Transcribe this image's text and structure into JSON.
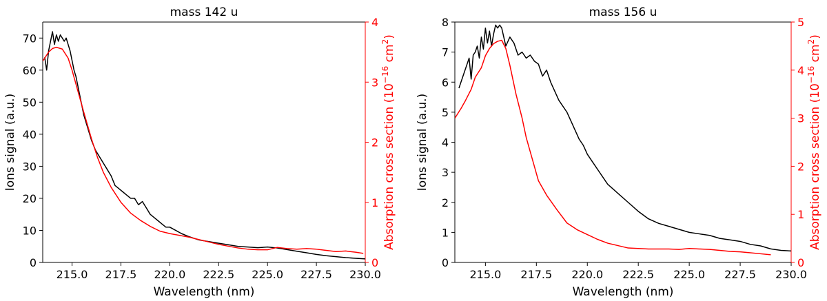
{
  "chart_data": [
    {
      "type": "line",
      "title": "mass 142 u",
      "xlabel": "Wavelength (nm)",
      "ylabel_left": "Ions signal (a.u.)",
      "ylabel_right_main": "Absorption cross section (10",
      "ylabel_right_exp": "−16",
      "ylabel_right_unit": " cm",
      "ylabel_right_sq": "2",
      "ylabel_right_end": ")",
      "xlim": [
        213.5,
        230.0
      ],
      "ylim_left": [
        0,
        75
      ],
      "ylim_right": [
        0,
        4
      ],
      "xticks": [
        215.0,
        217.5,
        220.0,
        222.5,
        225.0,
        227.5,
        230.0
      ],
      "xtick_labels": [
        "215.0",
        "217.5",
        "220.0",
        "222.5",
        "225.0",
        "227.5",
        "230.0"
      ],
      "yticks_left": [
        0,
        10,
        20,
        30,
        40,
        50,
        60,
        70
      ],
      "ytick_labels_left": [
        "0",
        "10",
        "20",
        "30",
        "40",
        "50",
        "60",
        "70"
      ],
      "yticks_right": [
        0,
        1,
        2,
        3,
        4
      ],
      "ytick_labels_right": [
        "0",
        "1",
        "2",
        "3",
        "4"
      ],
      "grid": false,
      "series": [
        {
          "axis": "left",
          "color": "#000000",
          "x": [
            213.6,
            213.7,
            213.8,
            213.9,
            214.0,
            214.1,
            214.2,
            214.3,
            214.4,
            214.5,
            214.6,
            214.7,
            214.8,
            214.9,
            215.0,
            215.1,
            215.2,
            215.3,
            215.4,
            215.5,
            215.6,
            215.7,
            215.8,
            215.9,
            216.0,
            216.2,
            216.4,
            216.6,
            216.8,
            217.0,
            217.2,
            217.4,
            217.6,
            217.8,
            218.0,
            218.2,
            218.4,
            218.6,
            218.8,
            219.0,
            219.2,
            219.4,
            219.6,
            219.8,
            220.0,
            220.3,
            220.6,
            221.0,
            221.5,
            222.0,
            222.5,
            223.0,
            223.5,
            224.0,
            224.5,
            225.0,
            225.5,
            226.0,
            226.5,
            227.0,
            227.5,
            228.0,
            228.5,
            229.0,
            229.5,
            230.0
          ],
          "y": [
            64,
            60,
            66,
            69,
            72,
            68,
            71,
            69,
            71,
            70,
            69,
            70,
            68,
            66,
            63,
            60,
            58,
            55,
            52,
            49,
            46,
            44,
            42,
            40,
            38,
            35,
            33,
            31,
            29,
            27,
            24,
            23,
            22,
            21,
            20,
            20,
            18,
            19,
            17,
            15,
            14,
            13,
            12,
            11,
            11,
            10,
            9,
            8,
            7,
            6.5,
            6,
            5.5,
            5,
            4.8,
            4.6,
            4.8,
            4.5,
            4,
            3.5,
            3,
            2.5,
            2.1,
            1.8,
            1.5,
            1.3,
            1.1
          ]
        },
        {
          "axis": "right",
          "color": "#ff0000",
          "x": [
            213.5,
            213.8,
            214.0,
            214.2,
            214.5,
            214.8,
            215.0,
            215.3,
            215.6,
            216.0,
            216.3,
            216.6,
            217.0,
            217.5,
            218.0,
            218.5,
            219.0,
            219.5,
            220.0,
            220.5,
            221.0,
            221.5,
            222.0,
            222.5,
            223.0,
            223.5,
            224.0,
            224.5,
            225.0,
            225.5,
            226.0,
            226.5,
            227.0,
            227.5,
            228.0,
            228.5,
            229.0,
            229.5,
            229.9
          ],
          "y": [
            3.35,
            3.5,
            3.56,
            3.58,
            3.55,
            3.4,
            3.2,
            2.85,
            2.5,
            2.05,
            1.75,
            1.5,
            1.25,
            1.0,
            0.82,
            0.7,
            0.6,
            0.52,
            0.48,
            0.45,
            0.42,
            0.38,
            0.34,
            0.3,
            0.27,
            0.24,
            0.22,
            0.21,
            0.21,
            0.25,
            0.23,
            0.22,
            0.23,
            0.22,
            0.2,
            0.18,
            0.19,
            0.17,
            0.15
          ]
        }
      ]
    },
    {
      "type": "line",
      "title": "mass 156 u",
      "xlabel": "Wavelength (nm)",
      "ylabel_left": "Ions signal (a.u.)",
      "ylabel_right_main": "Absorption cross section (10",
      "ylabel_right_exp": "−16",
      "ylabel_right_unit": " cm",
      "ylabel_right_sq": "2",
      "ylabel_right_end": ")",
      "xlim": [
        213.5,
        230.0
      ],
      "ylim_left": [
        0,
        8
      ],
      "ylim_right": [
        0,
        5
      ],
      "xticks": [
        215.0,
        217.5,
        220.0,
        222.5,
        225.0,
        227.5,
        230.0
      ],
      "xtick_labels": [
        "215.0",
        "217.5",
        "220.0",
        "222.5",
        "225.0",
        "227.5",
        "230.0"
      ],
      "yticks_left": [
        0,
        1,
        2,
        3,
        4,
        5,
        6,
        7,
        8
      ],
      "ytick_labels_left": [
        "0",
        "1",
        "2",
        "3",
        "4",
        "5",
        "6",
        "7",
        "8"
      ],
      "yticks_right": [
        0,
        1,
        2,
        3,
        4,
        5
      ],
      "ytick_labels_right": [
        "0",
        "1",
        "2",
        "3",
        "4",
        "5"
      ],
      "grid": false,
      "series": [
        {
          "axis": "left",
          "color": "#000000",
          "x": [
            213.7,
            213.9,
            214.1,
            214.2,
            214.3,
            214.4,
            214.5,
            214.6,
            214.7,
            214.8,
            214.9,
            215.0,
            215.1,
            215.2,
            215.3,
            215.4,
            215.5,
            215.6,
            215.7,
            215.8,
            215.9,
            216.0,
            216.2,
            216.4,
            216.6,
            216.8,
            217.0,
            217.2,
            217.4,
            217.6,
            217.8,
            218.0,
            218.2,
            218.4,
            218.6,
            218.8,
            219.0,
            219.2,
            219.4,
            219.6,
            219.8,
            220.0,
            220.3,
            220.6,
            221.0,
            221.5,
            222.0,
            222.5,
            223.0,
            223.5,
            224.0,
            224.5,
            225.0,
            225.5,
            226.0,
            226.5,
            227.0,
            227.5,
            228.0,
            228.5,
            229.0,
            229.5,
            230.0
          ],
          "y": [
            5.8,
            6.2,
            6.6,
            6.8,
            6.1,
            6.9,
            7.0,
            7.2,
            6.8,
            7.5,
            7.1,
            7.8,
            7.3,
            7.7,
            7.2,
            7.6,
            7.9,
            7.8,
            7.9,
            7.8,
            7.5,
            7.2,
            7.5,
            7.3,
            6.9,
            7.0,
            6.8,
            6.9,
            6.7,
            6.6,
            6.2,
            6.4,
            6.0,
            5.7,
            5.4,
            5.2,
            5.0,
            4.7,
            4.4,
            4.1,
            3.9,
            3.6,
            3.3,
            3.0,
            2.6,
            2.3,
            2.0,
            1.7,
            1.45,
            1.3,
            1.2,
            1.1,
            1.0,
            0.95,
            0.9,
            0.8,
            0.75,
            0.7,
            0.6,
            0.55,
            0.45,
            0.4,
            0.38
          ]
        },
        {
          "axis": "right",
          "color": "#ff0000",
          "x": [
            213.5,
            213.8,
            214.0,
            214.3,
            214.5,
            214.8,
            215.0,
            215.2,
            215.4,
            215.6,
            215.8,
            216.0,
            216.2,
            216.5,
            216.8,
            217.0,
            217.3,
            217.6,
            218.0,
            218.5,
            219.0,
            219.5,
            220.0,
            220.5,
            221.0,
            221.5,
            222.0,
            222.5,
            223.0,
            223.5,
            224.0,
            224.5,
            225.0,
            225.5,
            226.0,
            226.5,
            227.0,
            227.5,
            228.0,
            228.5,
            229.0
          ],
          "y": [
            3.0,
            3.2,
            3.35,
            3.6,
            3.85,
            4.05,
            4.3,
            4.45,
            4.55,
            4.6,
            4.62,
            4.45,
            4.1,
            3.5,
            3.0,
            2.6,
            2.15,
            1.7,
            1.4,
            1.1,
            0.82,
            0.68,
            0.58,
            0.48,
            0.4,
            0.35,
            0.3,
            0.29,
            0.28,
            0.28,
            0.28,
            0.27,
            0.29,
            0.28,
            0.27,
            0.25,
            0.23,
            0.22,
            0.2,
            0.18,
            0.16
          ]
        }
      ]
    }
  ]
}
